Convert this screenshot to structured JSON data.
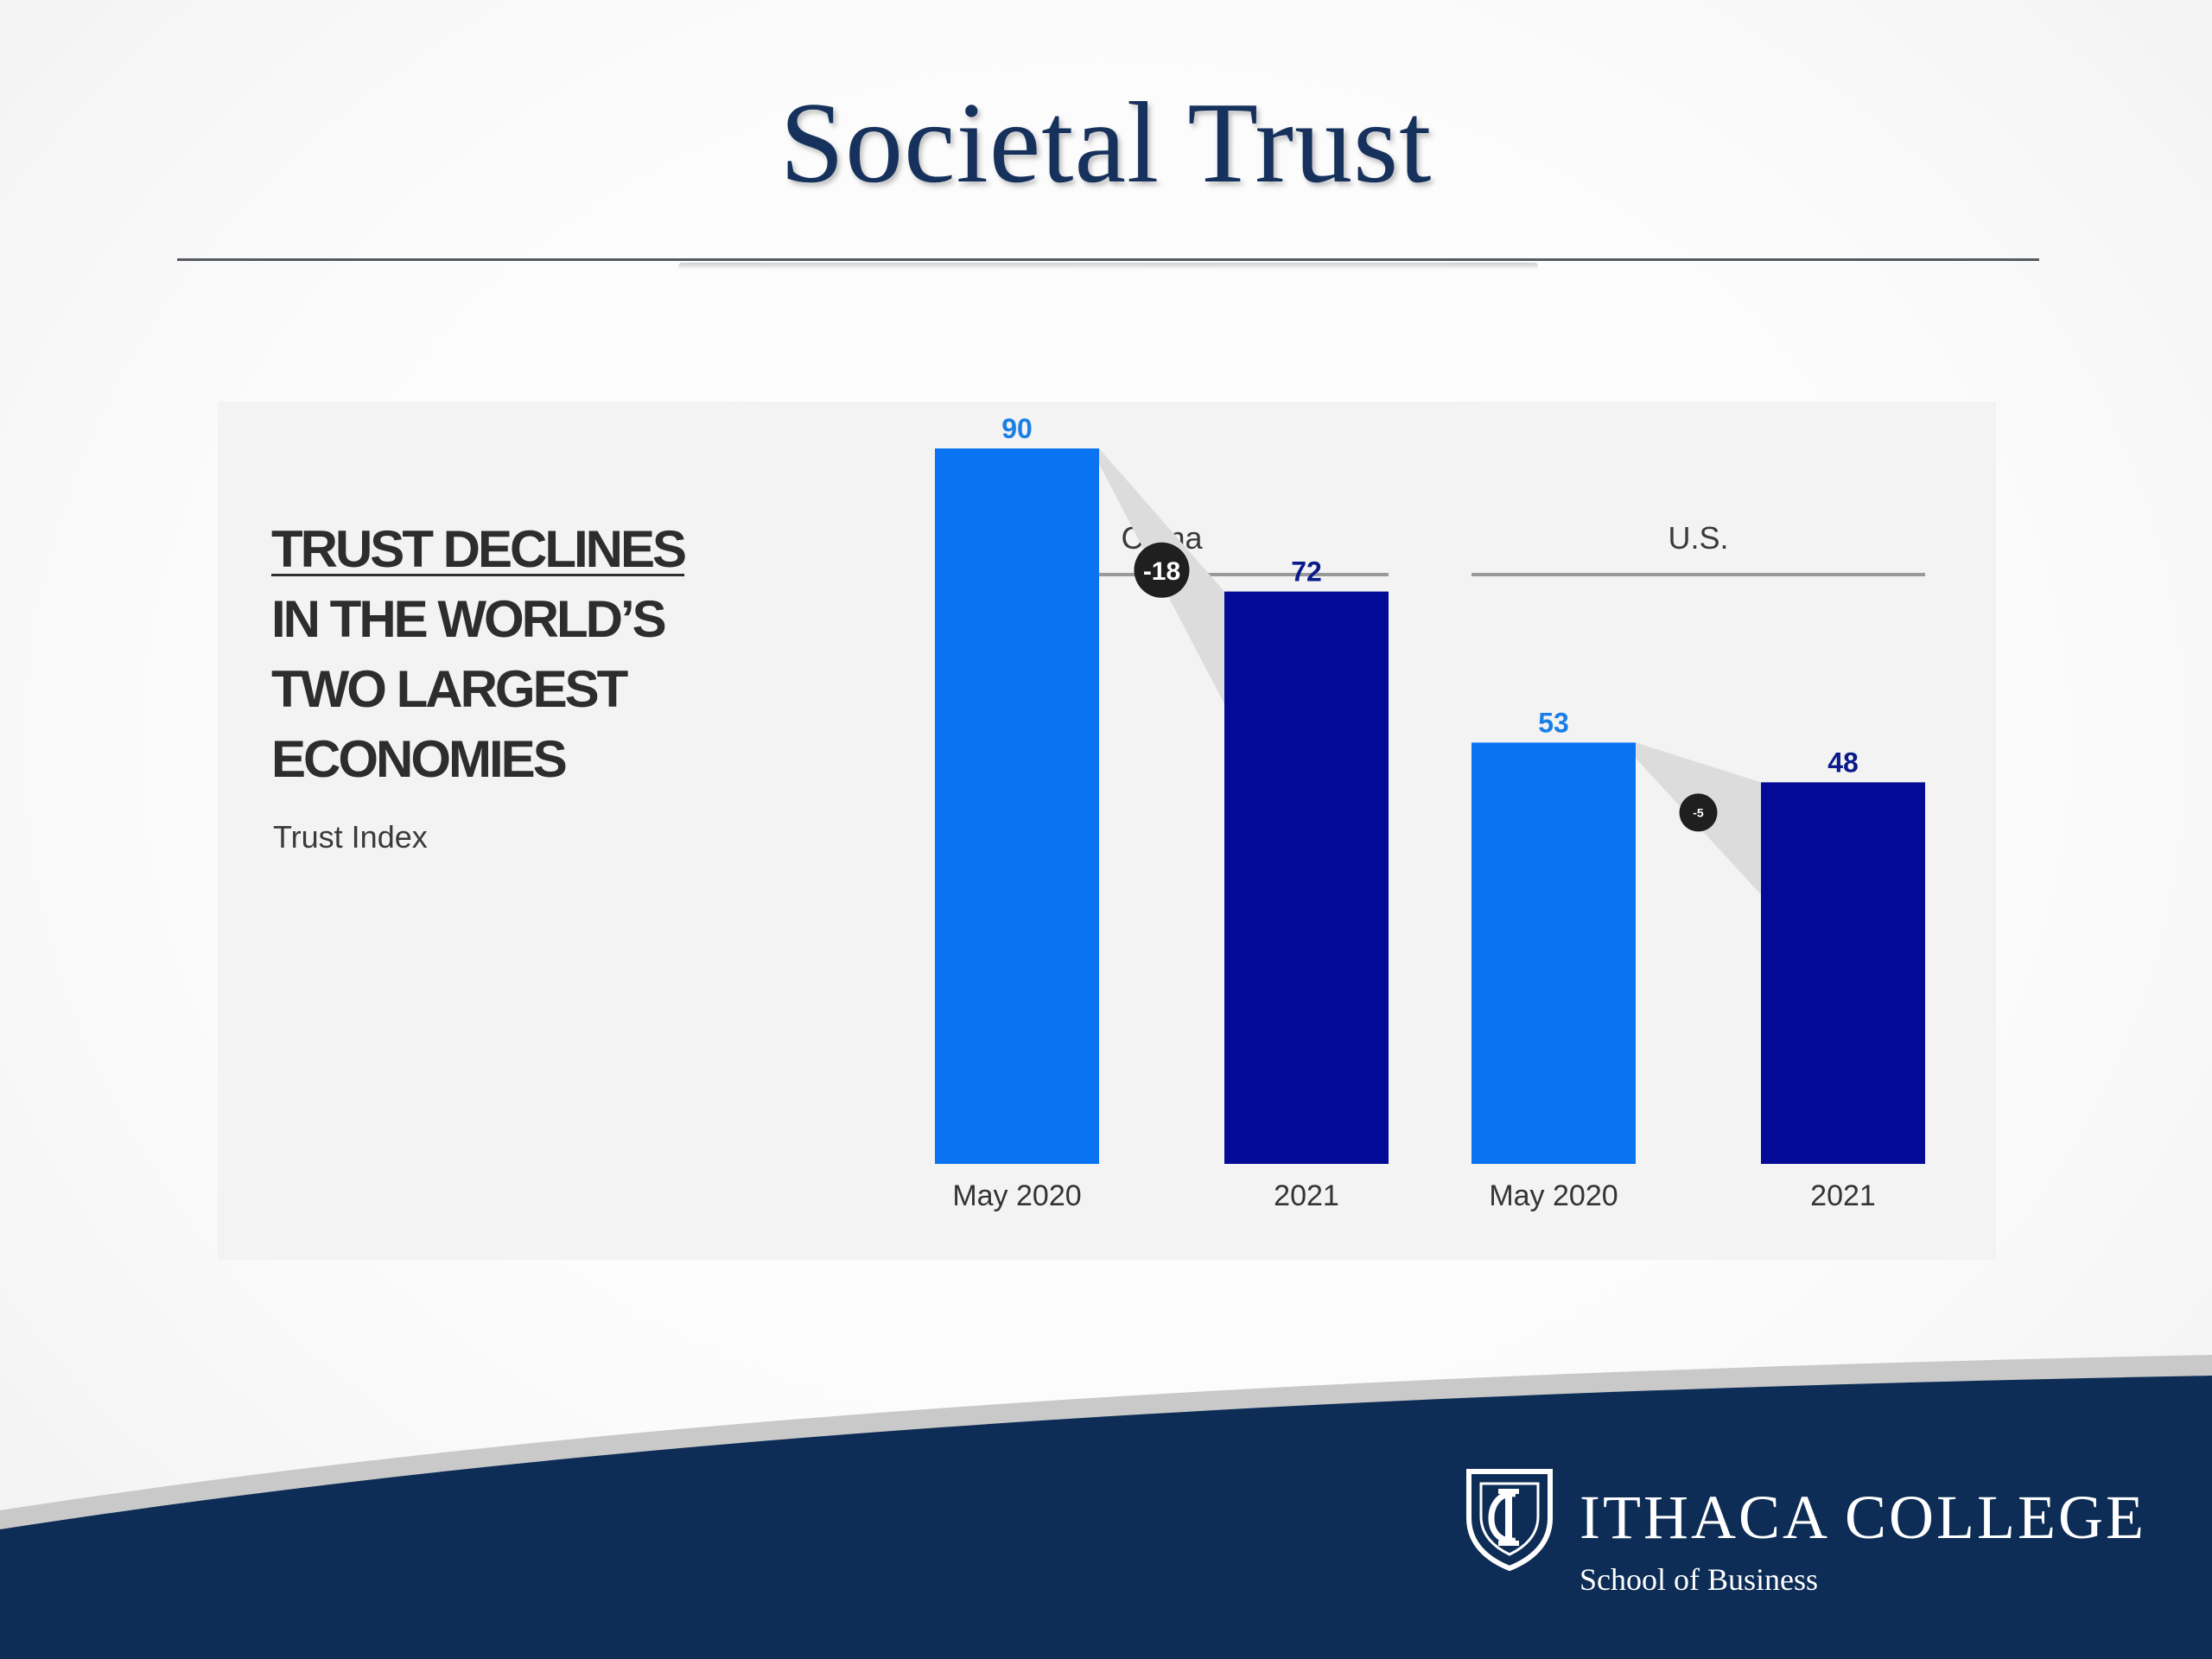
{
  "slide": {
    "title": "Societal Trust"
  },
  "chart_data": {
    "type": "bar",
    "title_lines": [
      "TRUST DECLINES",
      "IN THE WORLD’S",
      "TWO LARGEST",
      "ECONOMIES"
    ],
    "subtitle": "Trust Index",
    "groups": [
      {
        "name": "China",
        "categories": [
          "May 2020",
          "2021"
        ],
        "values": [
          90,
          72
        ],
        "change_label": "-18"
      },
      {
        "name": "U.S.",
        "categories": [
          "May 2020",
          "2021"
        ],
        "values": [
          53,
          48
        ],
        "change_label": "-5"
      }
    ],
    "series_colors": [
      "#0a73f2",
      "#030a96"
    ],
    "value_label_colors": [
      "#1a7fe8",
      "#0a1a8a"
    ],
    "connector_color": "#dcdcdc",
    "change_badge_color": "#1f1f1f",
    "ylim": [
      0,
      100
    ],
    "grid": false
  },
  "footer": {
    "institution": "ITHACA COLLEGE",
    "school": "School of Business",
    "band_color": "#0d2d56"
  }
}
